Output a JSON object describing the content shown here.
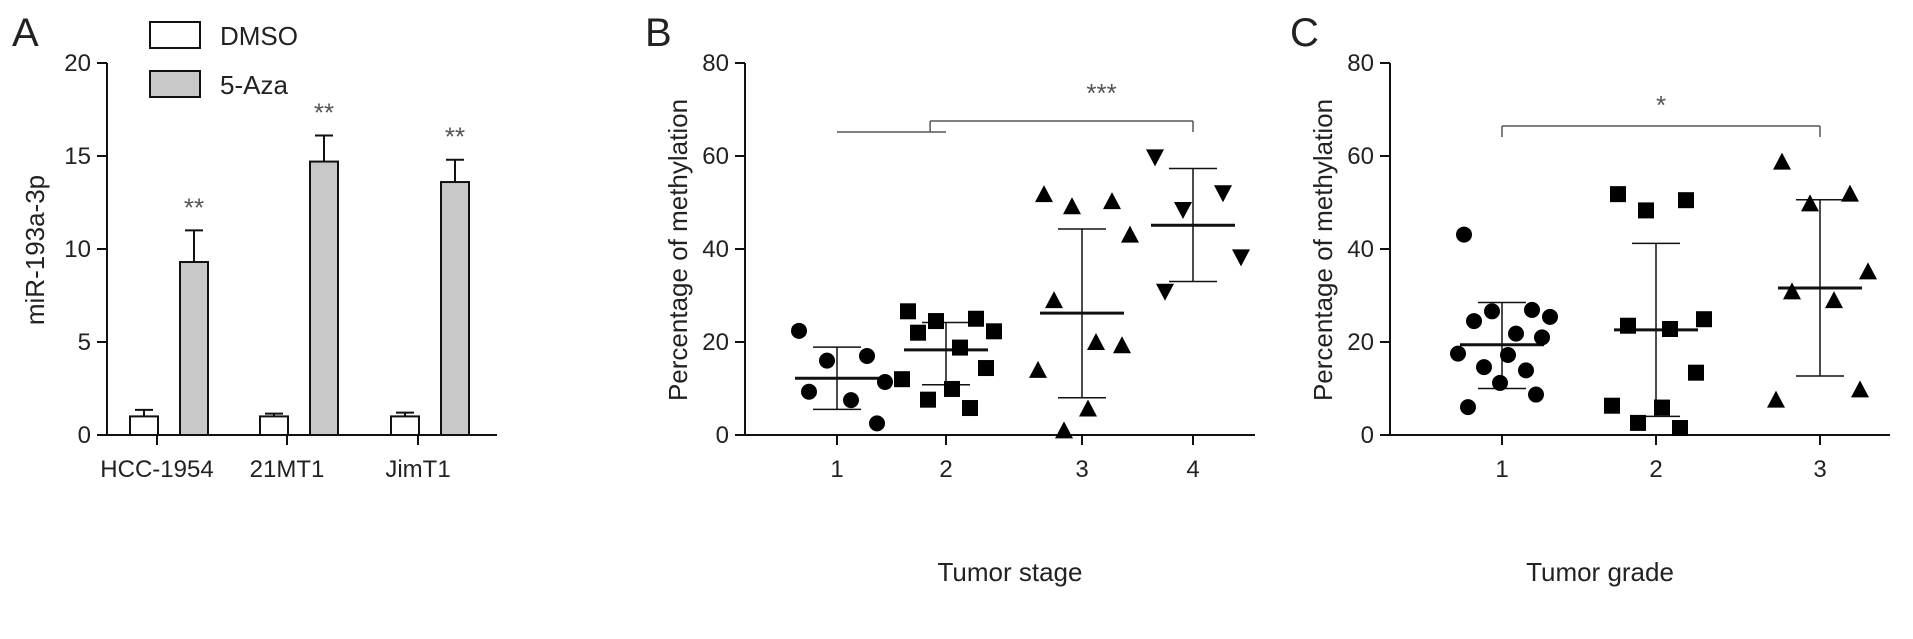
{
  "chart_data": [
    {
      "panel": "A",
      "type": "bar",
      "ylabel": "miR-193a-3p",
      "xlabel": "",
      "ylim": [
        0,
        20
      ],
      "yticks": [
        0,
        5,
        10,
        15,
        20
      ],
      "categories": [
        "HCC-1954",
        "21MT1",
        "JimT1"
      ],
      "series": [
        {
          "name": "DMSO",
          "values": [
            1.0,
            1.0,
            1.0
          ],
          "errors": [
            0.35,
            0.15,
            0.2
          ],
          "color": "#ffffff"
        },
        {
          "name": "5-Aza",
          "values": [
            9.3,
            14.7,
            13.6
          ],
          "errors": [
            1.7,
            1.4,
            1.2
          ],
          "color": "#c8c8c8"
        }
      ],
      "annotations": [
        "**",
        "**",
        "**"
      ],
      "legend": "top-left"
    },
    {
      "panel": "B",
      "type": "scatter",
      "xlabel": "Tumor stage",
      "ylabel": "Percentage of methylation",
      "ylim": [
        0,
        80
      ],
      "yticks": [
        0,
        20,
        40,
        60,
        80
      ],
      "categories": [
        "1",
        "2",
        "3",
        "4"
      ],
      "groups": [
        {
          "category": "1",
          "marker": "circle",
          "mean": 12.2,
          "sd_low": 5.5,
          "sd_high": 18.9,
          "points": [
            22.4,
            17.0,
            16.0,
            11.4,
            9.3,
            7.5,
            2.5
          ]
        },
        {
          "category": "2",
          "marker": "square",
          "mean": 18.3,
          "sd_low": 10.8,
          "sd_high": 24.2,
          "points": [
            26.6,
            25.0,
            24.5,
            22.3,
            22.0,
            18.8,
            14.4,
            12.0,
            9.9,
            7.6,
            5.8
          ]
        },
        {
          "category": "3",
          "marker": "triangle-up",
          "mean": 26.2,
          "sd_low": 8.0,
          "sd_high": 44.3,
          "points": [
            51.8,
            50.3,
            49.2,
            43.1,
            29.0,
            20.0,
            19.3,
            14.0,
            5.7,
            1.0
          ]
        },
        {
          "category": "4",
          "marker": "triangle-down",
          "mean": 45.1,
          "sd_low": 33.0,
          "sd_high": 57.3,
          "points": [
            59.7,
            52.0,
            48.4,
            38.2,
            30.8
          ]
        }
      ],
      "significance": {
        "label": "***",
        "from": [
          "1",
          "2",
          "3"
        ],
        "to": "4"
      }
    },
    {
      "panel": "C",
      "type": "scatter",
      "xlabel": "Tumor grade",
      "ylabel": "Percentage of methylation",
      "ylim": [
        0,
        80
      ],
      "yticks": [
        0,
        20,
        40,
        60,
        80
      ],
      "categories": [
        "1",
        "2",
        "3"
      ],
      "groups": [
        {
          "category": "1",
          "marker": "circle",
          "mean": 19.4,
          "sd_low": 10.0,
          "sd_high": 28.5,
          "points": [
            43.1,
            26.9,
            26.6,
            25.4,
            24.5,
            21.8,
            21.0,
            17.5,
            17.2,
            14.6,
            13.9,
            11.2,
            8.7,
            6.0
          ]
        },
        {
          "category": "2",
          "marker": "square",
          "mean": 22.6,
          "sd_low": 4.0,
          "sd_high": 41.2,
          "points": [
            51.8,
            50.5,
            48.3,
            24.9,
            23.5,
            22.8,
            13.4,
            6.3,
            5.9,
            2.6,
            1.5
          ]
        },
        {
          "category": "3",
          "marker": "triangle-up",
          "mean": 31.6,
          "sd_low": 12.7,
          "sd_high": 50.6,
          "points": [
            58.8,
            51.9,
            49.8,
            35.2,
            30.9,
            29.0,
            9.8,
            7.6
          ]
        }
      ],
      "significance": {
        "label": "*",
        "from": [
          "1"
        ],
        "to": "3"
      }
    }
  ]
}
